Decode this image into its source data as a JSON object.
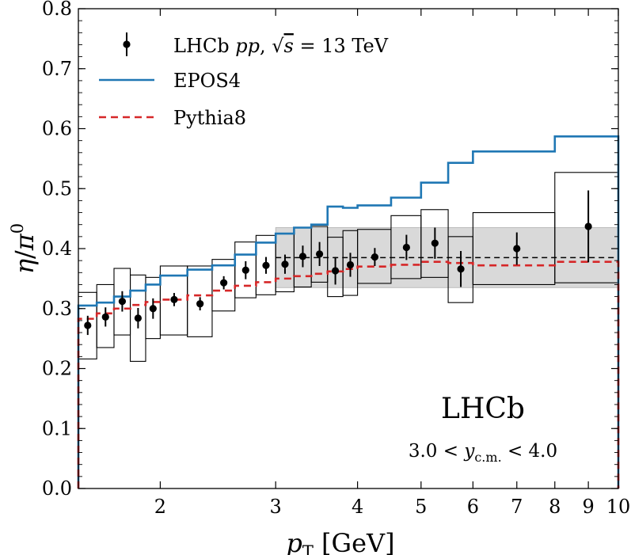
{
  "chart_data": {
    "type": "line",
    "xlabel": "p_T [GeV]",
    "ylabel": "η/π⁰",
    "xscale": "log",
    "xlim": [
      1.5,
      10
    ],
    "ylim": [
      0.0,
      0.8
    ],
    "x_ticks": [
      2,
      3,
      4,
      5,
      6,
      7,
      8,
      9,
      10
    ],
    "y_ticks": [
      "0.0",
      "0.1",
      "0.2",
      "0.3",
      "0.4",
      "0.5",
      "0.6",
      "0.7",
      "0.8"
    ],
    "grid": false,
    "legend_position": "top-left",
    "legend": [
      {
        "label": "LHCb pp, √s = 13 TeV",
        "style": "points"
      },
      {
        "label": "EPOS4",
        "style": "solid",
        "color": "#1f77b4"
      },
      {
        "label": "Pythia8",
        "style": "dashed",
        "color": "#d62728"
      }
    ],
    "annotations": {
      "experiment": "LHCb",
      "rapidity": "3.0 < y_c.m. < 4.0"
    },
    "data_points": {
      "x": [
        1.55,
        1.65,
        1.75,
        1.85,
        1.95,
        2.1,
        2.3,
        2.5,
        2.7,
        2.9,
        3.1,
        3.3,
        3.5,
        3.7,
        3.9,
        4.25,
        4.75,
        5.25,
        5.75,
        7.0,
        9.0
      ],
      "y": [
        0.272,
        0.286,
        0.312,
        0.284,
        0.3,
        0.315,
        0.308,
        0.343,
        0.364,
        0.372,
        0.374,
        0.387,
        0.391,
        0.363,
        0.373,
        0.386,
        0.402,
        0.409,
        0.366,
        0.4,
        0.437
      ],
      "yerr": [
        0.016,
        0.016,
        0.017,
        0.017,
        0.017,
        0.011,
        0.011,
        0.011,
        0.015,
        0.014,
        0.016,
        0.018,
        0.02,
        0.023,
        0.02,
        0.015,
        0.021,
        0.026,
        0.03,
        0.027,
        0.06
      ]
    },
    "systematic_boxes": [
      {
        "x0": 1.5,
        "x1": 1.6,
        "low": 0.216,
        "high": 0.327
      },
      {
        "x0": 1.6,
        "x1": 1.7,
        "low": 0.235,
        "high": 0.34
      },
      {
        "x0": 1.7,
        "x1": 1.8,
        "low": 0.256,
        "high": 0.367
      },
      {
        "x0": 1.8,
        "x1": 1.9,
        "low": 0.212,
        "high": 0.356
      },
      {
        "x0": 1.9,
        "x1": 2.0,
        "low": 0.25,
        "high": 0.352
      },
      {
        "x0": 2.0,
        "x1": 2.2,
        "low": 0.256,
        "high": 0.371
      },
      {
        "x0": 2.2,
        "x1": 2.4,
        "low": 0.253,
        "high": 0.371
      },
      {
        "x0": 2.4,
        "x1": 2.6,
        "low": 0.296,
        "high": 0.382
      },
      {
        "x0": 2.6,
        "x1": 2.8,
        "low": 0.318,
        "high": 0.411
      },
      {
        "x0": 2.8,
        "x1": 3.0,
        "low": 0.323,
        "high": 0.422
      },
      {
        "x0": 3.0,
        "x1": 3.2,
        "low": 0.328,
        "high": 0.425
      },
      {
        "x0": 3.2,
        "x1": 3.4,
        "low": 0.336,
        "high": 0.435
      },
      {
        "x0": 3.4,
        "x1": 3.6,
        "low": 0.344,
        "high": 0.437
      },
      {
        "x0": 3.6,
        "x1": 3.8,
        "low": 0.32,
        "high": 0.419
      },
      {
        "x0": 3.8,
        "x1": 4.0,
        "low": 0.322,
        "high": 0.43
      },
      {
        "x0": 4.0,
        "x1": 4.5,
        "low": 0.342,
        "high": 0.432
      },
      {
        "x0": 4.5,
        "x1": 5.0,
        "low": 0.35,
        "high": 0.455
      },
      {
        "x0": 5.0,
        "x1": 5.5,
        "low": 0.352,
        "high": 0.465
      },
      {
        "x0": 5.5,
        "x1": 6.0,
        "low": 0.31,
        "high": 0.42
      },
      {
        "x0": 6.0,
        "x1": 8.0,
        "low": 0.34,
        "high": 0.46
      },
      {
        "x0": 8.0,
        "x1": 10.0,
        "low": 0.343,
        "high": 0.527
      }
    ],
    "normalization_band": {
      "low": 0.335,
      "high": 0.435
    },
    "normalization_center": 0.385,
    "series": [
      {
        "name": "EPOS4",
        "color": "#1f77b4",
        "edges": [
          1.5,
          1.6,
          1.7,
          1.8,
          1.9,
          2.0,
          2.2,
          2.4,
          2.6,
          2.8,
          3.0,
          3.2,
          3.4,
          3.6,
          3.8,
          4.0,
          4.5,
          5.0,
          5.5,
          6.0,
          8.0,
          10.0
        ],
        "values": [
          0.305,
          0.31,
          0.32,
          0.33,
          0.34,
          0.355,
          0.365,
          0.372,
          0.39,
          0.41,
          0.425,
          0.435,
          0.44,
          0.47,
          0.468,
          0.472,
          0.485,
          0.51,
          0.543,
          0.562,
          0.587,
          0.53
        ]
      },
      {
        "name": "Pythia8",
        "color": "#d62728",
        "edges": [
          1.5,
          1.6,
          1.7,
          1.8,
          1.9,
          2.0,
          2.2,
          2.4,
          2.6,
          2.8,
          3.0,
          3.2,
          3.4,
          3.6,
          3.8,
          4.0,
          4.5,
          5.0,
          5.5,
          6.0,
          8.0,
          10.0
        ],
        "values": [
          0.283,
          0.292,
          0.3,
          0.306,
          0.311,
          0.315,
          0.322,
          0.33,
          0.338,
          0.344,
          0.35,
          0.354,
          0.358,
          0.362,
          0.366,
          0.37,
          0.373,
          0.378,
          0.376,
          0.372,
          0.378,
          0.382
        ]
      }
    ]
  }
}
